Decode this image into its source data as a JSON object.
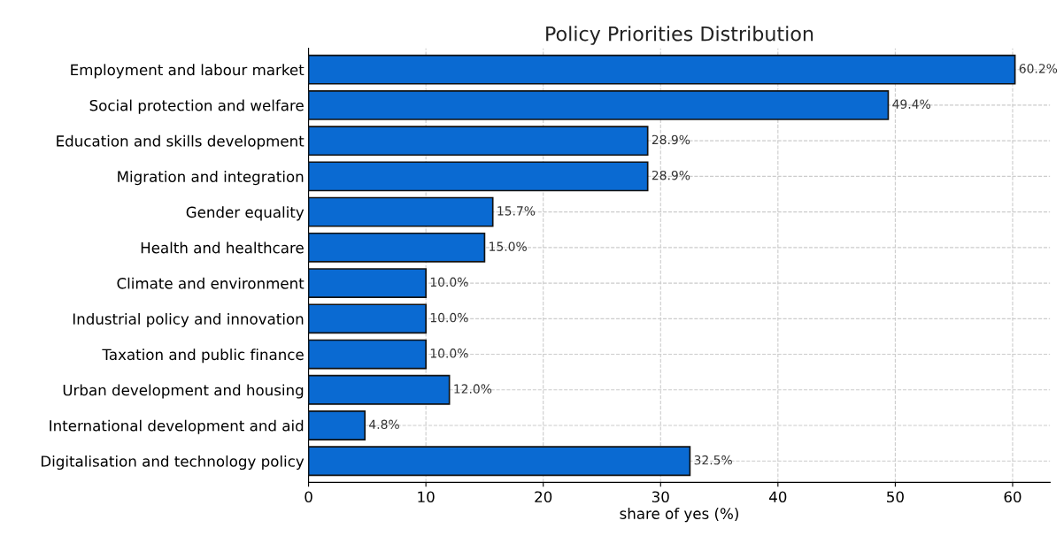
{
  "chart_data": {
    "type": "bar",
    "orientation": "horizontal",
    "title": "Policy Priorities Distribution",
    "xlabel": "share of yes (%)",
    "categories": [
      "Employment and labour market",
      "Social protection and welfare",
      "Education and skills development",
      "Migration and integration",
      "Gender equality",
      "Health and healthcare",
      "Climate and environment",
      "Industrial policy and innovation",
      "Taxation and public finance",
      "Urban development and housing",
      "International development and aid",
      "Digitalisation and technology policy"
    ],
    "values": [
      60.2,
      49.4,
      28.9,
      28.9,
      15.7,
      15.0,
      10.0,
      10.0,
      10.0,
      12.0,
      4.8,
      32.5
    ],
    "value_labels": [
      "60.2%",
      "49.4%",
      "28.9%",
      "28.9%",
      "15.7%",
      "15.0%",
      "10.0%",
      "10.0%",
      "10.0%",
      "12.0%",
      "4.8%",
      "32.5%"
    ],
    "color": "#0a6ad2",
    "xlim": [
      0,
      63.2
    ],
    "xticks": [
      0,
      10,
      20,
      30,
      40,
      50,
      60
    ],
    "grid": true
  }
}
